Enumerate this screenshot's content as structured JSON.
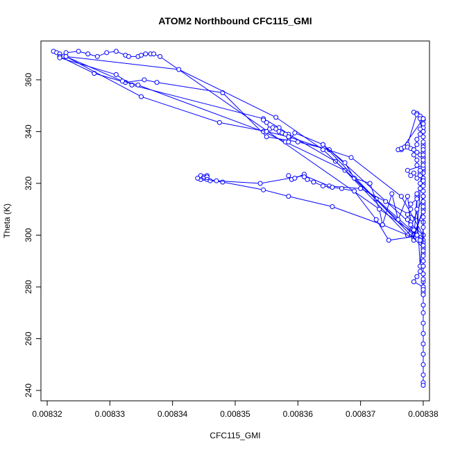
{
  "chart_data": {
    "type": "line",
    "title": "ATOM2 Northbound CFC115_GMI",
    "xlabel": "CFC115_GMI",
    "ylabel": "Theta (K)",
    "xlim": [
      0.008319,
      0.008381
    ],
    "ylim": [
      236,
      375
    ],
    "x_ticks": [
      0.00832,
      0.00833,
      0.00834,
      0.00835,
      0.00836,
      0.00837,
      0.00838
    ],
    "x_tick_labels": [
      "0.00832",
      "0.00833",
      "0.00834",
      "0.00835",
      "0.00836",
      "0.00837",
      "0.00838"
    ],
    "y_ticks": [
      240,
      260,
      280,
      300,
      320,
      340,
      360
    ],
    "y_tick_labels": [
      "240",
      "260",
      "280",
      "300",
      "320",
      "340",
      "360"
    ],
    "grid": false,
    "legend": "none",
    "series_color": "#0000ff",
    "series": [
      {
        "marker": "open-circle",
        "x": [
          0.008321,
          0.0083215,
          0.008322,
          0.008322,
          0.008323,
          0.008325,
          0.0083265,
          0.008328,
          0.0083295,
          0.008331,
          0.0083325,
          0.008333,
          0.0083345,
          0.008335,
          0.0083357,
          0.0083365,
          0.008337,
          0.008338,
          0.008379,
          0.00838,
          0.00838,
          0.00838,
          0.00838,
          0.00838,
          0.00838,
          0.00838,
          0.00838,
          0.00838,
          0.00838,
          0.00838,
          0.00838,
          0.00838,
          0.00838,
          0.00838,
          0.00838,
          0.00838,
          0.00838,
          0.00838
        ],
        "y": [
          371,
          370.5,
          370,
          369,
          370.5,
          371,
          370,
          369,
          370.5,
          371,
          369.5,
          369,
          369,
          369.5,
          370,
          370,
          370,
          369,
          300,
          298,
          295,
          293,
          290,
          288,
          285,
          282,
          280,
          277,
          273,
          270,
          266,
          262,
          258,
          254,
          250,
          246,
          243,
          242
        ]
      },
      {
        "marker": "open-circle",
        "x": [
          0.008322,
          0.0083275,
          0.0083325,
          0.0083355,
          0.0083375,
          0.008348,
          0.008355,
          0.00836,
          0.008365,
          0.00838,
          0.00838,
          0.00838,
          0.00838,
          0.00838,
          0.008379,
          0.0083775,
          0.0083765,
          0.00838,
          0.00838,
          0.00838,
          0.00838,
          0.00838
        ],
        "y": [
          369,
          362.5,
          359,
          360,
          359,
          355,
          338,
          336,
          333,
          300,
          310,
          320,
          330,
          340,
          347,
          335,
          333,
          345,
          325,
          315,
          305,
          297
        ]
      },
      {
        "marker": "open-circle",
        "x": [
          0.008322,
          0.008331,
          0.0083335,
          0.0083545,
          0.008357,
          0.0083585,
          0.008366,
          0.0083785,
          0.00838,
          0.00838,
          0.00838,
          0.00838
        ],
        "y": [
          368.5,
          362,
          358,
          345,
          341.5,
          339,
          328.5,
          300,
          310,
          322,
          334,
          345
        ]
      },
      {
        "marker": "open-circle",
        "x": [
          0.008323,
          0.008332,
          0.0083345,
          0.0083545,
          0.008358,
          0.0083675,
          0.0083775,
          0.00838,
          0.00838
        ],
        "y": [
          369,
          359.5,
          358,
          340,
          336,
          325,
          300,
          315,
          330
        ]
      },
      {
        "marker": "open-circle",
        "x": [
          0.008323,
          0.008335,
          0.0083475,
          0.008355,
          0.0083585,
          0.0083685,
          0.0083765,
          0.00838,
          0.00838
        ],
        "y": [
          369,
          353.5,
          343.5,
          340,
          338,
          330,
          315,
          300,
          320
        ]
      },
      {
        "marker": "open-circle",
        "x": [
          0.008323,
          0.008341,
          0.0083565,
          0.008364,
          0.0083725,
          0.008379,
          0.00838,
          0.00838
        ],
        "y": [
          369,
          364,
          345.5,
          333,
          314,
          300,
          335,
          345
        ]
      },
      {
        "marker": "open-circle",
        "x": [
          0.0083445,
          0.008345,
          0.008345,
          0.0083445,
          0.0083455,
          0.0083455,
          0.0083455,
          0.008346,
          0.008348,
          0.0083545,
          0.0083585,
          0.0083655,
          0.0083735,
          0.0083785,
          0.00838,
          0.00838,
          0.00838
        ],
        "y": [
          323,
          322.5,
          322,
          321.5,
          323,
          322.5,
          321.5,
          321,
          320.5,
          317.5,
          315,
          311,
          304,
          299,
          310,
          325,
          340
        ]
      },
      {
        "marker": "open-circle",
        "x": [
          0.008344,
          0.008347,
          0.008354,
          0.008361,
          0.008365,
          0.00837,
          0.008374,
          0.00838,
          0.00838
        ],
        "y": [
          322,
          321,
          320,
          323,
          319,
          318,
          313,
          305,
          320
        ]
      },
      {
        "marker": "open-circle",
        "x": [
          0.0083585,
          0.008359,
          0.0083595,
          0.008361,
          0.008361,
          0.0083615,
          0.0083625,
          0.008364,
          0.0083655,
          0.008367,
          0.008369,
          0.0083725,
          0.0083745,
          0.00838,
          0.00838,
          0.00838
        ],
        "y": [
          323,
          321.5,
          322,
          323.5,
          322.5,
          321.5,
          320.5,
          319,
          318.5,
          318,
          317,
          306,
          298,
          300,
          312,
          325
        ]
      },
      {
        "marker": "open-circle",
        "x": [
          0.008364,
          0.0083675,
          0.008369,
          0.0083715,
          0.008373,
          0.0083735,
          0.008375,
          0.008376,
          0.0083775,
          0.008378,
          0.0083785,
          0.008379,
          0.008379,
          0.0083795,
          0.00838,
          0.00838,
          0.00838,
          0.00838,
          0.00838,
          0.00838,
          0.00838
        ],
        "y": [
          335,
          328,
          322,
          320,
          310,
          304,
          316,
          306,
          315,
          305,
          298,
          315,
          310,
          288,
          303,
          296,
          285,
          283,
          279,
          278,
          277
        ]
      },
      {
        "marker": "open-circle",
        "x": [
          0.0083545,
          0.008355,
          0.0083555,
          0.008356,
          0.0083565,
          0.008357,
          0.0083575,
          0.008358,
          0.0083585,
          0.0083595,
          0.008364,
          0.00838
        ],
        "y": [
          344.5,
          343.5,
          341,
          341.5,
          341,
          340,
          339.5,
          339,
          336,
          339.5,
          335,
          295
        ]
      },
      {
        "marker": "open-circle",
        "x": [
          0.0083785,
          0.008379,
          0.008379,
          0.0083795,
          0.0083795,
          0.00838,
          0.00838,
          0.00838,
          0.00838,
          0.00838,
          0.00838,
          0.00838,
          0.00838,
          0.00838,
          0.00838,
          0.00838,
          0.00838,
          0.00838,
          0.0083795,
          0.0083795,
          0.008379,
          0.008379,
          0.008378,
          0.008378,
          0.0083775,
          0.0083775,
          0.008378,
          0.0083785,
          0.008379,
          0.0083795,
          0.00838,
          0.00838,
          0.00838,
          0.00838,
          0.00838,
          0.0083795,
          0.008379,
          0.0083785,
          0.00838,
          0.00838
        ],
        "y": [
          347.5,
          347,
          346.5,
          346,
          345,
          344.5,
          343,
          341.5,
          340,
          338,
          336,
          334,
          332,
          330,
          328,
          326,
          324,
          322,
          320,
          318,
          316,
          314,
          312,
          310,
          308,
          306,
          304,
          302,
          300,
          298,
          296,
          294,
          292,
          290,
          288,
          286,
          284,
          282,
          280,
          279
        ]
      },
      {
        "marker": "open-circle",
        "x": [
          0.008376,
          0.0083765,
          0.008377,
          0.0083775,
          0.008378,
          0.0083785,
          0.008379,
          0.0083795,
          0.00838,
          0.00838,
          0.00838,
          0.0083795,
          0.008379,
          0.0083785,
          0.008378,
          0.0083775,
          0.00838,
          0.00838,
          0.00838,
          0.00838
        ],
        "y": [
          333,
          333.5,
          334,
          334,
          333.5,
          333,
          332,
          331,
          330,
          328,
          326,
          324,
          322,
          324,
          323,
          325,
          327,
          329,
          331,
          333
        ]
      },
      {
        "marker": "open-circle",
        "x": [
          0.00838,
          0.00838,
          0.0083795,
          0.0083795,
          0.008379,
          0.008379,
          0.0083785,
          0.0083785,
          0.008379,
          0.008379,
          0.0083795,
          0.0083795,
          0.00838,
          0.00838,
          0.00838,
          0.00838,
          0.00838,
          0.00838,
          0.00838,
          0.00838
        ],
        "y": [
          345,
          343,
          341,
          339,
          337,
          335,
          333,
          331,
          329,
          327,
          325,
          323,
          321,
          319,
          317,
          315,
          313,
          311,
          309,
          307
        ]
      }
    ]
  }
}
